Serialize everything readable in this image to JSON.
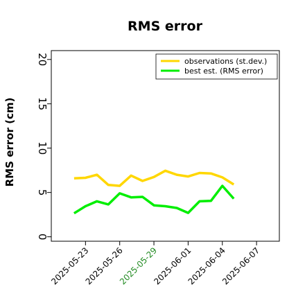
{
  "chart_data": {
    "type": "line",
    "title": "RMS error",
    "xlabel": "",
    "ylabel": "RMS error (cm)",
    "ylim": [
      -0.5,
      21
    ],
    "xlim": [
      "2025-05-20",
      "2025-06-09"
    ],
    "grid": false,
    "legend_position": "top-right",
    "y_ticks": [
      0,
      5,
      10,
      15,
      20
    ],
    "y_tick_labels": [
      "0",
      "5",
      "10",
      "15",
      "20"
    ],
    "x_ticks": [
      "2025-05-23",
      "2025-05-26",
      "2025-05-29",
      "2025-06-01",
      "2025-06-04",
      "2025-06-07"
    ],
    "x_tick_labels": [
      "2025-05-23",
      "2025-05-26",
      "2025-05-29",
      "2025-06-01",
      "2025-06-04",
      "2025-06-07"
    ],
    "highlighted_tick_label": "2025-05-29",
    "x": [
      "2025-05-22",
      "2025-05-23",
      "2025-05-24",
      "2025-05-25",
      "2025-05-26",
      "2025-05-27",
      "2025-05-28",
      "2025-05-29",
      "2025-05-30",
      "2025-05-31",
      "2025-06-01",
      "2025-06-02",
      "2025-06-03",
      "2025-06-04",
      "2025-06-05"
    ],
    "series": [
      {
        "name": "observations (st.dev.)",
        "color": "#FFD700",
        "values": [
          6.6,
          6.65,
          7.0,
          5.85,
          5.75,
          6.9,
          6.3,
          6.75,
          7.45,
          7.0,
          6.8,
          7.2,
          7.15,
          6.7,
          5.9
        ]
      },
      {
        "name": "best est. (RMS error)",
        "color": "#00EE00",
        "values": [
          2.65,
          3.45,
          4.0,
          3.65,
          4.9,
          4.45,
          4.5,
          3.55,
          3.45,
          3.25,
          2.7,
          4.0,
          4.05,
          5.75,
          4.3
        ]
      }
    ],
    "colors": {
      "tick_label": "#000000",
      "highlighted_tick_label": "#228B22"
    }
  }
}
